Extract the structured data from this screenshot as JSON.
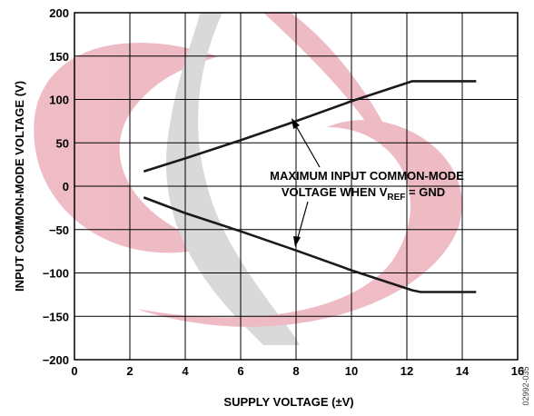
{
  "chart_data": {
    "type": "line",
    "xlabel": "SUPPLY VOLTAGE (±V)",
    "ylabel": "INPUT COMMON-MODE VOLTAGE (V)",
    "xlim": [
      0,
      16
    ],
    "ylim": [
      -200,
      200
    ],
    "x_ticks": [
      "0",
      "2",
      "4",
      "6",
      "8",
      "10",
      "12",
      "14",
      "16"
    ],
    "y_ticks": [
      "200",
      "150",
      "100",
      "50",
      "0",
      "−50",
      "−100",
      "−150",
      "−200"
    ],
    "grid": true,
    "series": [
      {
        "x": [
          2.5,
          4,
          6,
          8,
          10,
          12.2,
          12.5,
          14.5
        ],
        "y": [
          17,
          32,
          53,
          75,
          98,
          121,
          121,
          121
        ]
      },
      {
        "x": [
          2.5,
          4,
          6,
          8,
          10,
          12.2,
          12.5,
          14.5
        ],
        "y": [
          -13,
          -31,
          -52,
          -74,
          -97,
          -120,
          -122,
          -122
        ]
      }
    ],
    "annotation": {
      "line1": "MAXIMUM INPUT COMMON-MODE",
      "line2_prefix": "VOLTAGE WHEN V",
      "line2_sub": "REF",
      "line2_suffix": " = GND"
    },
    "figure_id": "02992-035",
    "colors": {
      "series_line": "#1a1a1a",
      "grid": "#000000",
      "watermark": "#cd2d4a"
    }
  }
}
